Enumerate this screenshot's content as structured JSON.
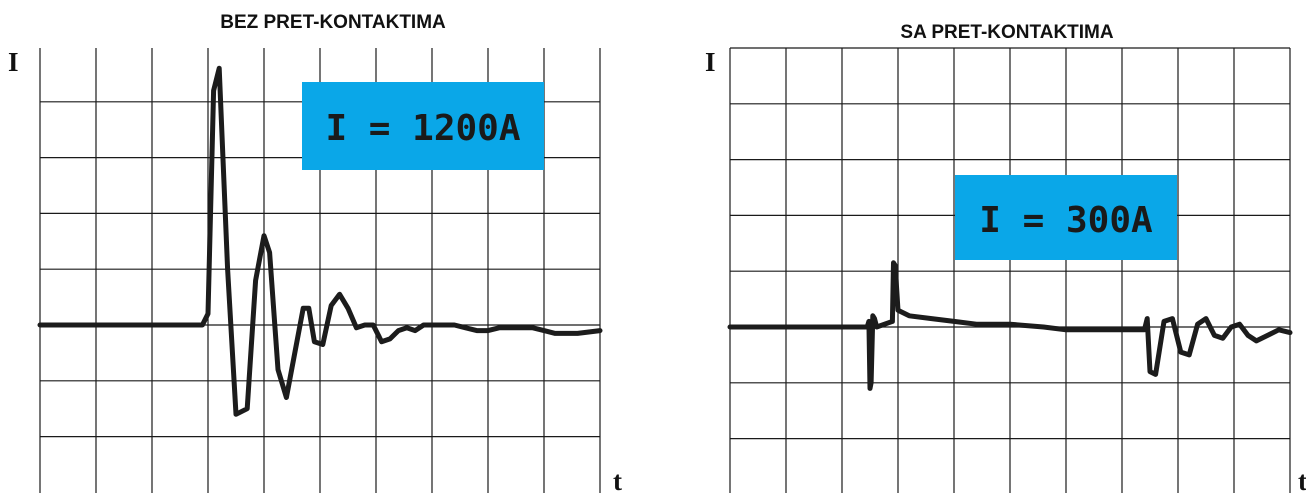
{
  "colors": {
    "label_box": "#0aa7e8",
    "trace": "#1c1c1c",
    "grid": "#1a1a1a"
  },
  "chart_data": [
    {
      "type": "line",
      "title": "BEZ PRET-KONTAKTIMA",
      "ylabel": "I",
      "xlabel": "t",
      "annotation": "I = 1200A",
      "grid": true,
      "xlim": [
        0,
        10
      ],
      "ylim": [
        -3,
        5
      ],
      "series": [
        {
          "x": [
            0,
            2.9,
            3.0,
            3.1,
            3.2,
            3.35,
            3.5,
            3.7,
            3.85,
            4.0,
            4.1,
            4.25,
            4.4,
            4.55,
            4.7,
            4.8,
            4.9,
            5.05,
            5.2,
            5.35,
            5.5,
            5.65,
            5.8,
            5.95,
            6.1,
            6.25,
            6.4,
            6.55,
            6.7,
            6.85,
            7.0,
            7.2,
            7.4,
            7.6,
            7.8,
            8.0,
            8.2,
            8.4,
            8.6,
            8.8,
            9.0,
            9.2,
            9.4,
            9.6,
            10.0
          ],
          "y": [
            0,
            0,
            0.2,
            4.2,
            4.6,
            1.0,
            -1.6,
            -1.5,
            0.8,
            1.6,
            1.3,
            -0.8,
            -1.3,
            -0.5,
            0.3,
            0.3,
            -0.3,
            -0.35,
            0.35,
            0.55,
            0.3,
            -0.05,
            0.0,
            0.0,
            -0.3,
            -0.25,
            -0.1,
            -0.05,
            -0.1,
            0.0,
            0.0,
            0.0,
            0.0,
            -0.05,
            -0.1,
            -0.1,
            -0.05,
            -0.05,
            -0.05,
            -0.05,
            -0.1,
            -0.15,
            -0.15,
            -0.15,
            -0.1
          ]
        }
      ]
    },
    {
      "type": "line",
      "title": "SA PRET-KONTAKTIMA",
      "ylabel": "I",
      "xlabel": "t",
      "annotation": "I = 300A",
      "grid": true,
      "xlim": [
        0,
        10
      ],
      "ylim": [
        -3,
        5
      ],
      "series": [
        {
          "x": [
            0,
            2.45,
            2.48,
            2.5,
            2.52,
            2.55,
            2.58,
            2.62,
            2.9,
            2.92,
            2.95,
            3.0,
            3.2,
            3.6,
            4.0,
            4.4,
            5.0,
            5.6,
            6.0,
            6.4,
            6.8,
            7.2,
            7.4,
            7.45,
            7.5,
            7.6,
            7.75,
            7.9,
            8.05,
            8.2,
            8.35,
            8.5,
            8.65,
            8.8,
            8.95,
            9.1,
            9.25,
            9.4,
            9.6,
            9.8,
            10.0
          ],
          "y": [
            0,
            0,
            0.1,
            -1.1,
            -1.0,
            0.2,
            0.15,
            0.0,
            0.1,
            1.15,
            1.1,
            0.3,
            0.2,
            0.15,
            0.1,
            0.05,
            0.05,
            0.0,
            -0.05,
            -0.05,
            -0.05,
            -0.05,
            -0.05,
            0.15,
            -0.8,
            -0.85,
            0.1,
            0.15,
            -0.45,
            -0.5,
            0.05,
            0.15,
            -0.15,
            -0.2,
            0.0,
            0.05,
            -0.15,
            -0.25,
            -0.15,
            -0.05,
            -0.1
          ]
        }
      ]
    }
  ]
}
